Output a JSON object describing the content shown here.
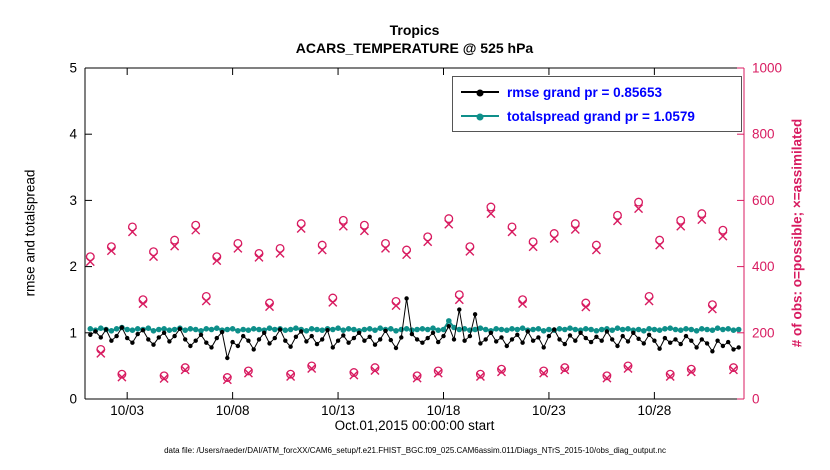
{
  "header": {
    "title_line1": "Tropics",
    "title_line2": "ACARS_TEMPERATURE @ 525 hPa"
  },
  "axes": {
    "ylabel_left": "rmse and totalspread",
    "ylabel_right": "# of obs: o=possible; ×=assimilated",
    "xlabel": "Oct.01,2015 00:00:00 start"
  },
  "legend": {
    "rmse_label": "rmse grand pr = 0.85653",
    "totalspread_label": "totalspread grand pr = 1.0579"
  },
  "footer": {
    "data_file": "data file: /Users/raeder/DAI/ATM_forcXX/CAM6_setup/f.e21.FHIST_BGC.f09_025.CAM6assim.011/Diags_NTrS_2015-10/obs_diag_output.nc"
  },
  "colors": {
    "rmse": "#000000",
    "totalspread": "#0e8f8a",
    "obs": "#d81b60",
    "legend_text": "#0000ff",
    "axis": "#000000"
  },
  "chart_data": {
    "type": "line",
    "title": "Tropics — ACARS_TEMPERATURE @ 525 hPa",
    "xlabel": "Oct.01,2015 00:00:00 start",
    "ylabel_left": "rmse and totalspread",
    "ylabel_right": "# of obs: o=possible; ×=assimilated",
    "xlim": [
      0,
      31.25
    ],
    "ylim_left": [
      0,
      5
    ],
    "ylim_right": [
      0,
      1000
    ],
    "grid": false,
    "legend_position": "upper-right",
    "xticks": {
      "values": [
        2,
        7,
        12,
        17,
        22,
        27
      ],
      "labels": [
        "10/03",
        "10/08",
        "10/13",
        "10/18",
        "10/23",
        "10/28"
      ]
    },
    "yticks_left": [
      0,
      1,
      2,
      3,
      4,
      5
    ],
    "yticks_right": [
      0,
      200,
      400,
      600,
      800,
      1000
    ],
    "x_start": 0.25,
    "x_step": 0.25,
    "series": [
      {
        "name": "rmse",
        "axis": "left",
        "grand_pr": 0.85653,
        "values": [
          0.97,
          1.02,
          0.93,
          1.05,
          0.88,
          0.95,
          1.08,
          0.92,
          0.85,
          0.98,
          1.04,
          0.9,
          0.82,
          0.93,
          1.0,
          0.87,
          0.95,
          1.06,
          0.9,
          0.8,
          0.88,
          0.97,
          0.85,
          0.78,
          0.92,
          1.01,
          0.62,
          0.86,
          0.8,
          0.95,
          0.88,
          0.75,
          0.9,
          1.0,
          0.84,
          0.92,
          1.05,
          0.88,
          0.79,
          0.94,
          1.02,
          0.87,
          0.95,
          0.83,
          0.9,
          1.04,
          0.78,
          0.88,
          0.96,
          0.85,
          0.92,
          1.0,
          0.88,
          0.94,
          0.82,
          0.9,
          1.03,
          0.89,
          0.77,
          0.93,
          1.52,
          0.98,
          0.9,
          0.85,
          0.92,
          1.0,
          0.86,
          0.95,
          1.1,
          0.9,
          1.35,
          0.88,
          0.95,
          1.28,
          0.84,
          0.9,
          1.0,
          0.87,
          0.93,
          0.8,
          0.9,
          0.97,
          0.85,
          1.02,
          0.88,
          0.93,
          0.78,
          0.95,
          1.05,
          0.9,
          0.83,
          0.96,
          0.88,
          1.0,
          0.92,
          0.86,
          0.94,
          0.88,
          1.02,
          0.9,
          0.8,
          0.95,
          0.87,
          1.0,
          0.91,
          0.84,
          0.97,
          0.88,
          0.76,
          0.92,
          0.85,
          0.9,
          0.83,
          0.95,
          0.88,
          0.78,
          0.9,
          0.84,
          0.72,
          0.88,
          0.8,
          0.86,
          0.75,
          0.78
        ]
      },
      {
        "name": "totalspread",
        "axis": "left",
        "grand_pr": 1.0579,
        "values": [
          1.06,
          1.04,
          1.07,
          1.05,
          1.03,
          1.06,
          1.08,
          1.05,
          1.04,
          1.06,
          1.05,
          1.07,
          1.03,
          1.05,
          1.06,
          1.04,
          1.05,
          1.07,
          1.04,
          1.06,
          1.05,
          1.03,
          1.06,
          1.05,
          1.07,
          1.04,
          1.05,
          1.06,
          1.03,
          1.05,
          1.04,
          1.06,
          1.05,
          1.04,
          1.07,
          1.05,
          1.06,
          1.04,
          1.05,
          1.07,
          1.05,
          1.03,
          1.06,
          1.05,
          1.04,
          1.06,
          1.05,
          1.07,
          1.04,
          1.06,
          1.05,
          1.03,
          1.05,
          1.06,
          1.04,
          1.07,
          1.05,
          1.06,
          1.03,
          1.05,
          1.06,
          1.04,
          1.05,
          1.06,
          1.05,
          1.07,
          1.04,
          1.05,
          1.18,
          1.08,
          1.05,
          1.06,
          1.04,
          1.05,
          1.07,
          1.05,
          1.03,
          1.06,
          1.05,
          1.04,
          1.06,
          1.05,
          1.07,
          1.04,
          1.05,
          1.06,
          1.03,
          1.05,
          1.04,
          1.06,
          1.05,
          1.07,
          1.05,
          1.04,
          1.06,
          1.05,
          1.03,
          1.05,
          1.06,
          1.04,
          1.07,
          1.05,
          1.06,
          1.04,
          1.05,
          1.03,
          1.06,
          1.05,
          1.04,
          1.06,
          1.07,
          1.05,
          1.04,
          1.06,
          1.05,
          1.03,
          1.06,
          1.05,
          1.04,
          1.07,
          1.05,
          1.06,
          1.04,
          1.05
        ]
      }
    ],
    "obs_scatter": {
      "axis": "right",
      "x_start": 0.25,
      "x_step": 0.5,
      "possible": [
        430,
        150,
        460,
        75,
        520,
        300,
        445,
        70,
        480,
        95,
        525,
        310,
        430,
        65,
        470,
        85,
        440,
        290,
        455,
        75,
        530,
        100,
        465,
        305,
        540,
        80,
        525,
        95,
        470,
        295,
        450,
        70,
        490,
        85,
        545,
        315,
        460,
        75,
        580,
        90,
        520,
        300,
        475,
        85,
        500,
        95,
        530,
        290,
        465,
        70,
        555,
        100,
        595,
        310,
        480,
        75,
        540,
        90,
        560,
        285,
        510,
        95
      ],
      "assimilated": [
        415,
        138,
        448,
        66,
        505,
        288,
        430,
        62,
        462,
        88,
        510,
        296,
        418,
        58,
        455,
        78,
        428,
        279,
        440,
        68,
        515,
        92,
        450,
        292,
        522,
        72,
        508,
        86,
        455,
        282,
        436,
        63,
        475,
        78,
        528,
        300,
        446,
        68,
        560,
        82,
        505,
        288,
        460,
        78,
        485,
        88,
        512,
        278,
        450,
        63,
        538,
        92,
        575,
        296,
        465,
        68,
        522,
        82,
        542,
        272,
        492,
        88
      ]
    }
  }
}
